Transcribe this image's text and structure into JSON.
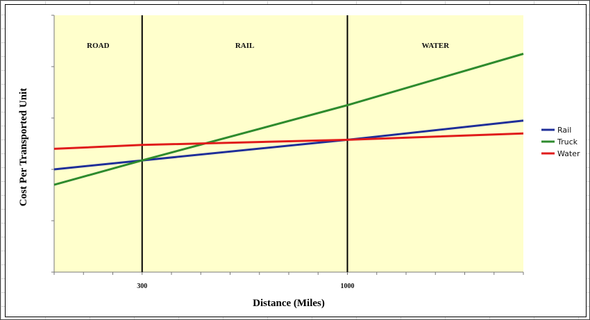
{
  "chart_data": {
    "type": "line",
    "title": "",
    "xlabel": "Distance (Miles)",
    "ylabel": "Cost Per Transported Unit",
    "xlim": [
      0,
      1600
    ],
    "ylim": [
      0,
      100
    ],
    "x_tick_labels": [
      {
        "value": 300,
        "label": "300"
      },
      {
        "value": 1000,
        "label": "1000"
      }
    ],
    "vertical_markers": [
      300,
      1000
    ],
    "regions": [
      {
        "label": "ROAD",
        "from": 0,
        "to": 300
      },
      {
        "label": "RAIL",
        "from": 300,
        "to": 1000
      },
      {
        "label": "WATER",
        "from": 1000,
        "to": 1600
      }
    ],
    "region_fill": "#ffffcc",
    "legend_position": "right",
    "series": [
      {
        "name": "Rail",
        "color": "#1f2f99",
        "x": [
          0,
          300,
          1000,
          1600
        ],
        "y": [
          40,
          43.5,
          51.5,
          59
        ]
      },
      {
        "name": "Truck",
        "color": "#2e8b2e",
        "x": [
          0,
          300,
          1000,
          1600
        ],
        "y": [
          34,
          43.5,
          65,
          85
        ]
      },
      {
        "name": "Water",
        "color": "#e01b1b",
        "x": [
          0,
          300,
          1000,
          1600
        ],
        "y": [
          48,
          49.5,
          51.5,
          54
        ]
      }
    ]
  }
}
